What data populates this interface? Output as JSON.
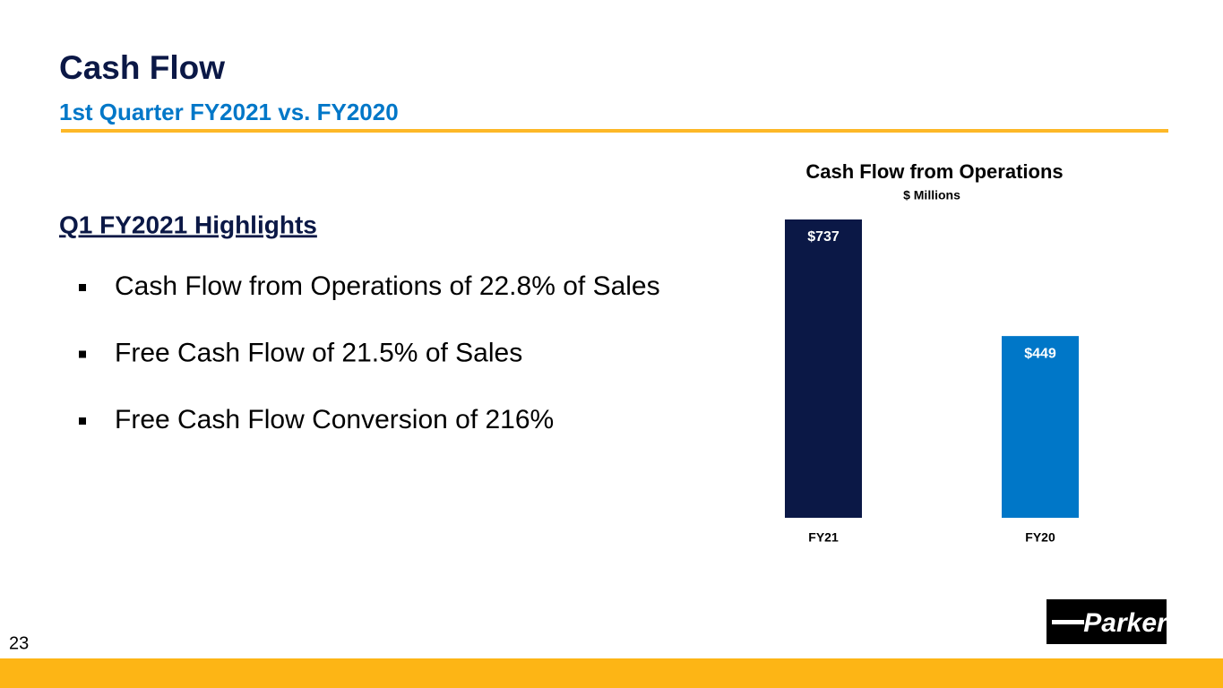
{
  "header": {
    "title": "Cash Flow",
    "subtitle": "1st Quarter FY2021 vs. FY2020"
  },
  "highlights": {
    "heading": "Q1 FY2021 Highlights",
    "items": [
      "Cash Flow from Operations of 22.8% of Sales",
      "Free Cash Flow of 21.5% of Sales",
      "Free Cash Flow Conversion of 216%"
    ]
  },
  "chart_data": {
    "type": "bar",
    "title": "Cash Flow from Operations",
    "subtitle": "$ Millions",
    "categories": [
      "FY21",
      "FY20"
    ],
    "values": [
      737,
      449
    ],
    "value_labels": [
      "$737",
      "$449"
    ],
    "colors": [
      "#0b1846",
      "#0077c8"
    ]
  },
  "footer": {
    "page_number": "23",
    "logo": "Parker"
  }
}
